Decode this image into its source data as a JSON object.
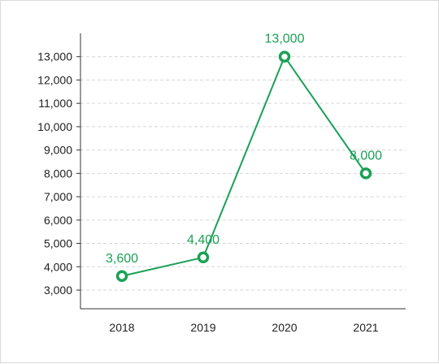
{
  "chart_data": {
    "type": "line",
    "categories": [
      "2018",
      "2019",
      "2020",
      "2021"
    ],
    "series": [
      {
        "values": [
          3600,
          4400,
          13000,
          8000
        ]
      }
    ],
    "data_labels": [
      "3,600",
      "4,400",
      "13,000",
      "8,000"
    ],
    "y_ticks": [
      3000,
      4000,
      5000,
      6000,
      7000,
      8000,
      9000,
      10000,
      11000,
      12000,
      13000
    ],
    "y_tick_labels": [
      "3,000",
      "4,000",
      "5,000",
      "6,000",
      "7,000",
      "8,000",
      "9,000",
      "10,000",
      "11,000",
      "12,000",
      "13,000"
    ],
    "ylim": [
      2200,
      14000
    ],
    "grid": true,
    "grid_style": "dashed",
    "line_color": "#1aa156",
    "title": "",
    "xlabel": "",
    "ylabel": ""
  }
}
